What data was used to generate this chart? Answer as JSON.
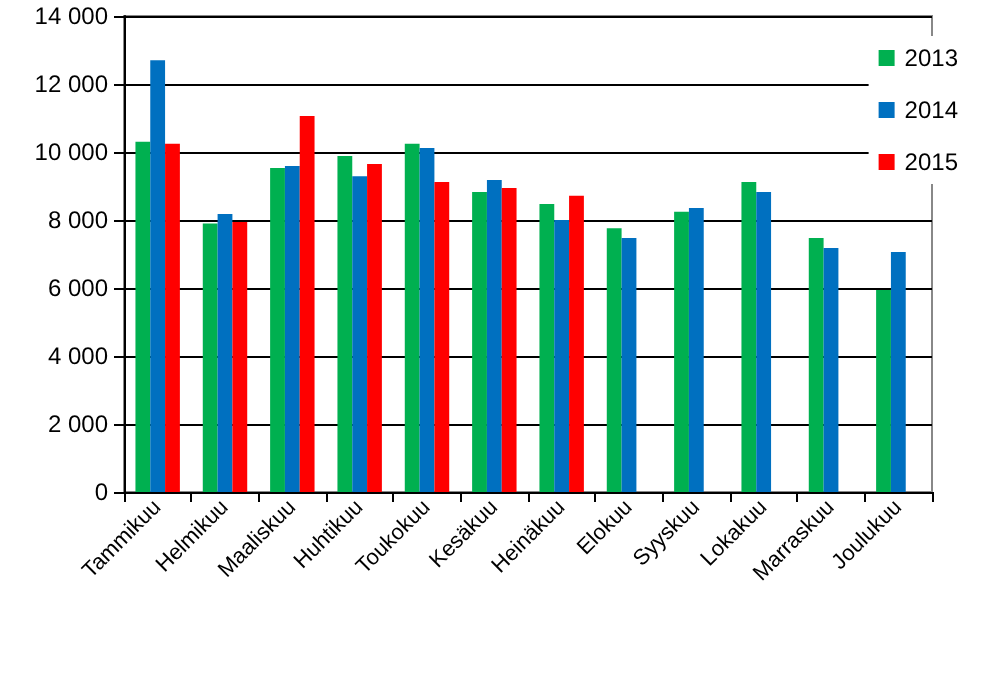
{
  "chart_data": {
    "type": "bar",
    "categories": [
      "Tammikuu",
      "Helmikuu",
      "Maaliskuu",
      "Huhtikuu",
      "Toukokuu",
      "Kesäkuu",
      "Heinäkuu",
      "Elokuu",
      "Syyskuu",
      "Lokakuu",
      "Marraskuu",
      "Joulukuu"
    ],
    "series": [
      {
        "name": "2013",
        "color": "#00b050",
        "values": [
          10300,
          7900,
          9530,
          9880,
          10240,
          8820,
          8470,
          7760,
          8240,
          9120,
          7470,
          5940
        ]
      },
      {
        "name": "2014",
        "color": "#0070c0",
        "values": [
          12700,
          8180,
          9590,
          9290,
          10120,
          9180,
          8000,
          7470,
          8350,
          8820,
          7180,
          7060
        ]
      },
      {
        "name": "2015",
        "color": "#ff0000",
        "values": [
          10240,
          7940,
          11060,
          9650,
          9120,
          8940,
          8710,
          null,
          null,
          null,
          null,
          null
        ]
      }
    ],
    "ylim": [
      0,
      14000
    ],
    "yticks": [
      {
        "value": 0,
        "label": "0"
      },
      {
        "value": 2000,
        "label": "2 000"
      },
      {
        "value": 4000,
        "label": "4 000"
      },
      {
        "value": 6000,
        "label": "6 000"
      },
      {
        "value": 8000,
        "label": "8 000"
      },
      {
        "value": 10000,
        "label": "10 000"
      },
      {
        "value": 12000,
        "label": "12 000"
      },
      {
        "value": 14000,
        "label": "14 000"
      }
    ],
    "grid": "y",
    "legend": "top right"
  }
}
